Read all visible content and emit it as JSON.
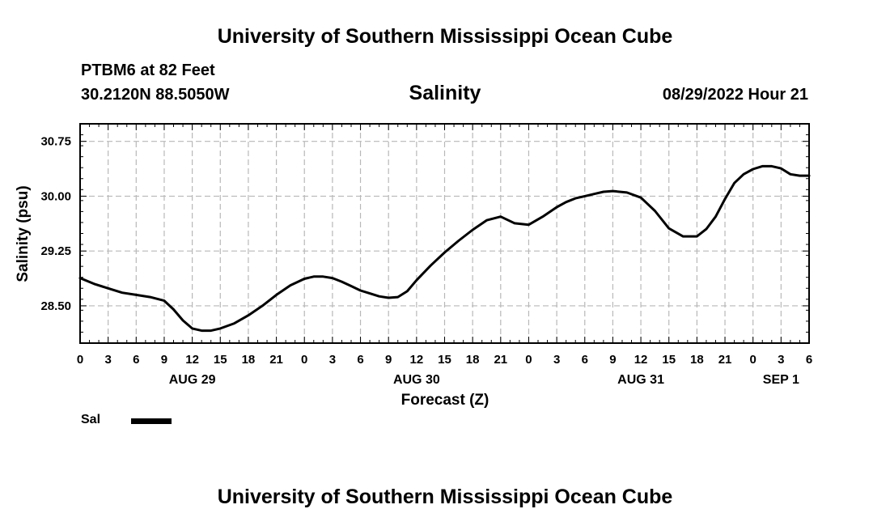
{
  "header": {
    "org_title": "University of Southern Mississippi Ocean Cube",
    "station": "PTBM6 at 82 Feet",
    "coordinates": "30.2120N  88.5050W",
    "issued": "08/29/2022 Hour 21"
  },
  "footer": {
    "org_title": "University of Southern Mississippi Ocean Cube"
  },
  "chart_data": {
    "type": "line",
    "title": "Salinity",
    "xlabel": "Forecast (Z)",
    "ylabel": "Salinity (psu)",
    "x_unit": "hours since AUG 29 00Z",
    "xlim": [
      0,
      78
    ],
    "ylim": [
      27.99,
      30.99
    ],
    "yticks": [
      28.5,
      29.25,
      30.0,
      30.75
    ],
    "ytick_labels": [
      "28.50",
      "29.25",
      "30.00",
      "30.75"
    ],
    "xticks": [
      0,
      3,
      6,
      9,
      12,
      15,
      18,
      21,
      24,
      27,
      30,
      33,
      36,
      39,
      42,
      45,
      48,
      51,
      54,
      57,
      60,
      63,
      66,
      69,
      72,
      75,
      78
    ],
    "xtick_labels": [
      "0",
      "3",
      "6",
      "9",
      "12",
      "15",
      "18",
      "21",
      "0",
      "3",
      "6",
      "9",
      "12",
      "15",
      "18",
      "21",
      "0",
      "3",
      "6",
      "9",
      "12",
      "15",
      "18",
      "21",
      "0",
      "3",
      "6"
    ],
    "date_labels": [
      {
        "x": 12,
        "label": "AUG 29"
      },
      {
        "x": 36,
        "label": "AUG 30"
      },
      {
        "x": 60,
        "label": "AUG 31"
      },
      {
        "x": 75,
        "label": "SEP 1"
      }
    ],
    "grid": true,
    "legend": {
      "placement": "bottom-left",
      "entries": [
        "Sal"
      ]
    },
    "series": [
      {
        "name": "Sal",
        "color": "#000000",
        "x": [
          0,
          1.5,
          3,
          4.5,
          6,
          7.5,
          9,
          10,
          11,
          12,
          13,
          14,
          15,
          16.5,
          18,
          19.5,
          21,
          22.5,
          24,
          25,
          26,
          27,
          28,
          29,
          30,
          31,
          32,
          33,
          34,
          35,
          36,
          37.5,
          39,
          40.5,
          42,
          43.5,
          45,
          46.5,
          48,
          49.5,
          51,
          52,
          53,
          54,
          55,
          56,
          57,
          58.5,
          60,
          61.5,
          63,
          64.5,
          66,
          67,
          68,
          69,
          70,
          71,
          72,
          73,
          74,
          75,
          76,
          77,
          78
        ],
        "values": [
          28.88,
          28.8,
          28.74,
          28.68,
          28.65,
          28.62,
          28.57,
          28.45,
          28.3,
          28.19,
          28.16,
          28.16,
          28.19,
          28.26,
          28.37,
          28.5,
          28.65,
          28.78,
          28.87,
          28.9,
          28.9,
          28.88,
          28.83,
          28.77,
          28.71,
          28.67,
          28.63,
          28.61,
          28.62,
          28.7,
          28.85,
          29.05,
          29.23,
          29.39,
          29.54,
          29.67,
          29.72,
          29.63,
          29.61,
          29.72,
          29.85,
          29.92,
          29.97,
          30.0,
          30.03,
          30.06,
          30.07,
          30.05,
          29.98,
          29.8,
          29.56,
          29.45,
          29.45,
          29.55,
          29.72,
          29.96,
          30.18,
          30.3,
          30.37,
          30.41,
          30.41,
          30.38,
          30.3,
          30.28,
          30.28
        ]
      }
    ]
  }
}
